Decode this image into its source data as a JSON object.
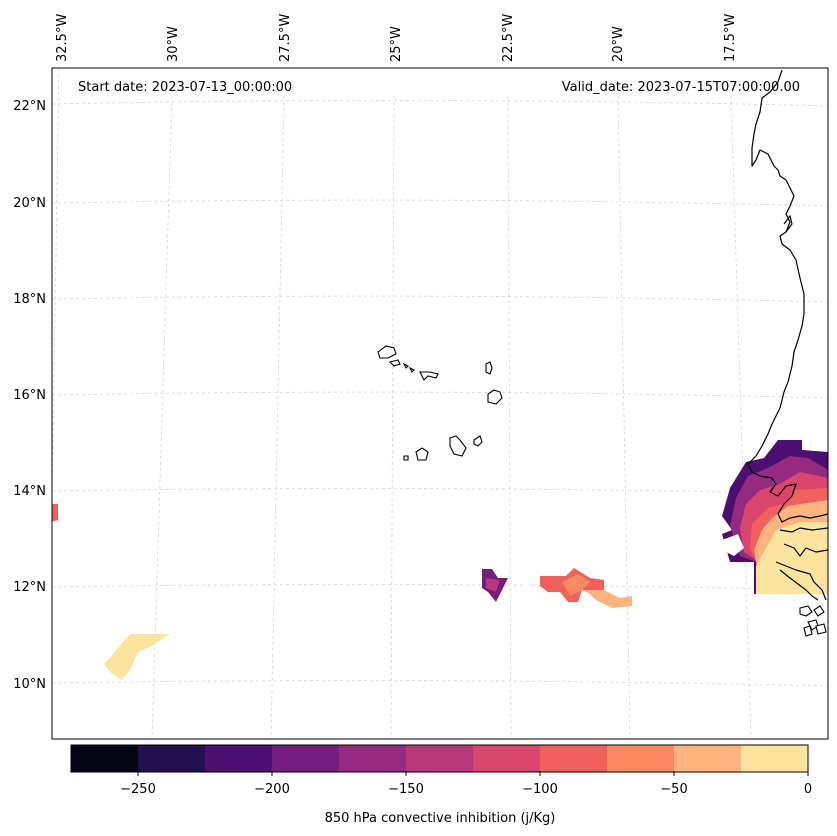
{
  "map": {
    "header": {
      "start_date": "Start date: 2023-07-13_00:00:00",
      "valid_date": "Valid_date: 2023-07-15T07:00:00.00"
    },
    "lon_labels": [
      "32.5°W",
      "30°W",
      "27.5°W",
      "25°W",
      "22.5°W",
      "20°W",
      "17.5°W"
    ],
    "lat_labels": [
      "22°N",
      "20°N",
      "18°N",
      "16°N",
      "14°N",
      "12°N",
      "10°N"
    ],
    "regions": [
      "Cabo Verde islands",
      "West African coast (Senegal, Gambia, Guinea-Bissau)"
    ]
  },
  "colorbar": {
    "label": "850 hPa convective inhibition (j/Kg)",
    "ticks": [
      "−250",
      "−200",
      "−150",
      "−100",
      "−50",
      "0"
    ],
    "levels": [
      -275,
      -250,
      -225,
      -200,
      -175,
      -150,
      -125,
      -100,
      -75,
      -50,
      -25,
      0
    ],
    "colors": [
      "#050415",
      "#221150",
      "#4d0e72",
      "#761e7e",
      "#942b81",
      "#b73779",
      "#dc456e",
      "#f2605c",
      "#fb8861",
      "#feb47c",
      "#fce49f"
    ]
  },
  "palette": {
    "cin_0_25": "#fce49f",
    "cin_25_50": "#feb47c",
    "cin_50_75": "#fb8861",
    "cin_75_100": "#f2605c",
    "cin_100_125": "#dc456e",
    "cin_125_150": "#b73779",
    "cin_150_175": "#942b81",
    "cin_175_200": "#761e7e",
    "cin_200_225": "#4d0e72"
  }
}
